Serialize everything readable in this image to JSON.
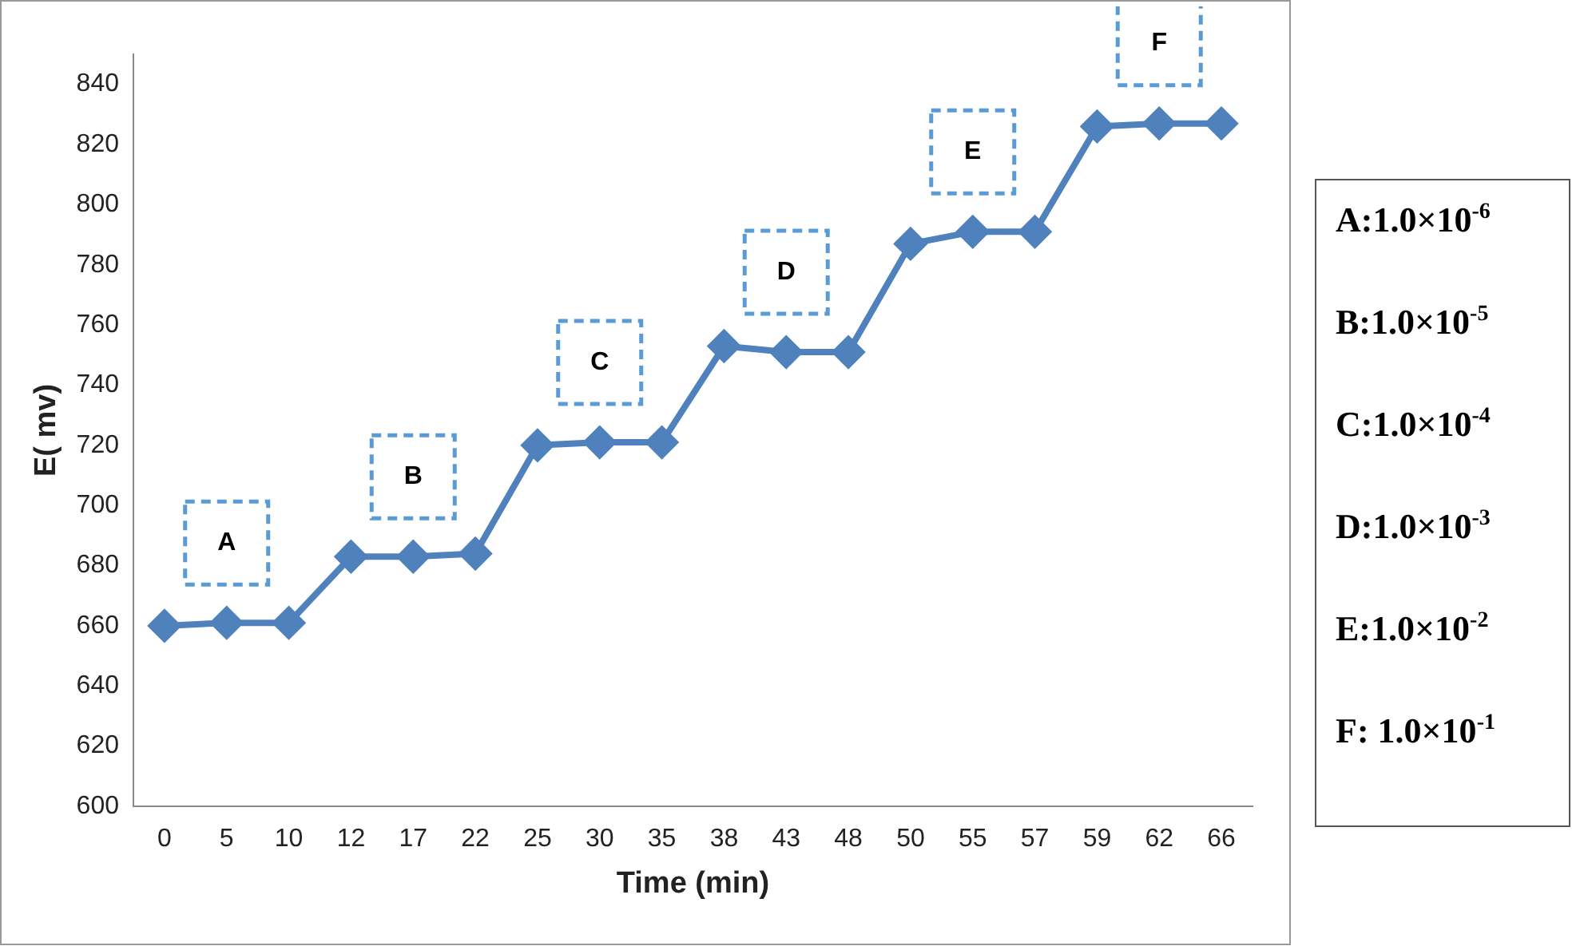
{
  "chart_data": {
    "type": "line",
    "xlabel": "Time (min)",
    "ylabel": "E( mv)",
    "categories": [
      "0",
      "5",
      "10",
      "12",
      "17",
      "22",
      "25",
      "30",
      "35",
      "38",
      "43",
      "48",
      "50",
      "55",
      "57",
      "59",
      "62",
      "66"
    ],
    "series": [
      {
        "color": "#4f81bd",
        "values": [
          660,
          661,
          661,
          683,
          683,
          684,
          720,
          721,
          721,
          753,
          751,
          751,
          787,
          791,
          791,
          826,
          827,
          827
        ]
      }
    ],
    "ylim": [
      600,
      850
    ],
    "yticks": [
      600,
      620,
      640,
      660,
      680,
      700,
      720,
      740,
      760,
      780,
      800,
      820,
      840
    ],
    "grid": false,
    "legend": false,
    "marker": "diamond",
    "line_style": "solid",
    "annotations": [
      "A",
      "B",
      "C",
      "D",
      "E",
      "F",
      "A:1.0×10$^{-6}$",
      "B:1.0×10$^{-5}$",
      "C:1.0×10$^{-4}$",
      "D:1.0×10$^{-3}$",
      "E:1.0×10$^{-2}$",
      "F: 1.0×10$^{-1}$"
    ]
  }
}
